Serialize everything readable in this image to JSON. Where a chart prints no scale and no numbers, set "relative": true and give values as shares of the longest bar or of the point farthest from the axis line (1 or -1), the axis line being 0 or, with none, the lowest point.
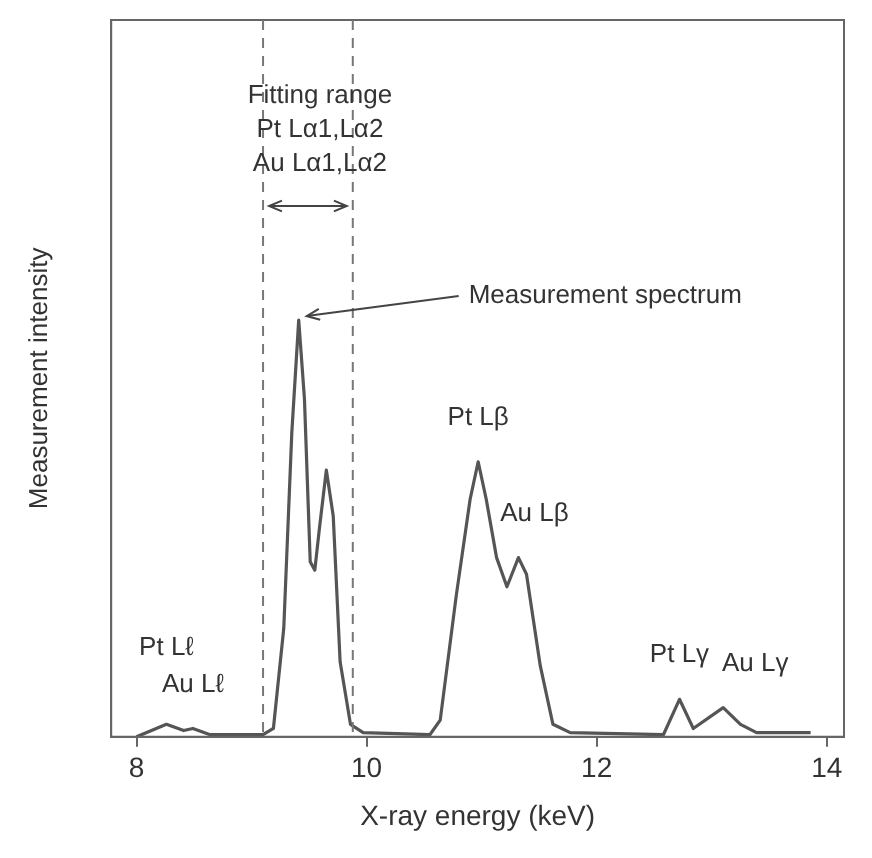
{
  "chart_data": {
    "type": "line",
    "relative": true,
    "xlabel": "X-ray energy (keV)",
    "ylabel": "Measurement intensity",
    "xlim": [
      7.78,
      14.15
    ],
    "xticks": [
      8,
      10,
      12,
      14
    ],
    "grid": false,
    "legend": false,
    "marker": "none",
    "line_style": "solid",
    "ref_lines": [
      {
        "axis": "x",
        "value": 9.1,
        "line_style": "dashed",
        "color": "#777777"
      },
      {
        "axis": "x",
        "value": 9.88,
        "line_style": "dashed",
        "color": "#777777"
      }
    ],
    "annotations": [
      "Fitting range",
      "Pt Lα1,Lα2",
      "Au Lα1,Lα2",
      {
        "text": "Measurement spectrum",
        "x": 9.41,
        "y": 1.0
      },
      {
        "text": "Pt Lβ",
        "x": 10.97,
        "y": 0.66
      },
      {
        "text": "Au Lβ",
        "x": 11.32,
        "y": 0.43
      },
      {
        "text": "Pt Lγ",
        "x": 12.72,
        "y": 0.09
      },
      {
        "text": "Au Lγ",
        "x": 13.1,
        "y": 0.07
      },
      {
        "text": "Au Lℓ",
        "x": 8.49,
        "y": 0.02
      },
      {
        "text": "Pt Lℓ",
        "x": 8.26,
        "y": 0.03
      }
    ],
    "series": [
      {
        "color": "#555555",
        "x": [
          8.0,
          8.26,
          8.41,
          8.49,
          8.64,
          9.1,
          9.19,
          9.28,
          9.35,
          9.41,
          9.46,
          9.51,
          9.55,
          9.59,
          9.65,
          9.71,
          9.77,
          9.86,
          9.97,
          10.55,
          10.64,
          10.78,
          10.9,
          10.97,
          11.04,
          11.13,
          11.22,
          11.32,
          11.39,
          11.51,
          11.62,
          11.77,
          12.58,
          12.72,
          12.84,
          13.1,
          13.25,
          13.39,
          13.86
        ],
        "values": [
          0,
          0.03,
          0.015,
          0.02,
          0.005,
          0.005,
          0.02,
          0.26,
          0.73,
          1.0,
          0.81,
          0.42,
          0.4,
          0.5,
          0.64,
          0.53,
          0.18,
          0.03,
          0.01,
          0.005,
          0.04,
          0.34,
          0.57,
          0.66,
          0.57,
          0.43,
          0.36,
          0.43,
          0.39,
          0.17,
          0.03,
          0.01,
          0.005,
          0.09,
          0.02,
          0.07,
          0.03,
          0.01,
          0.01
        ]
      }
    ]
  }
}
